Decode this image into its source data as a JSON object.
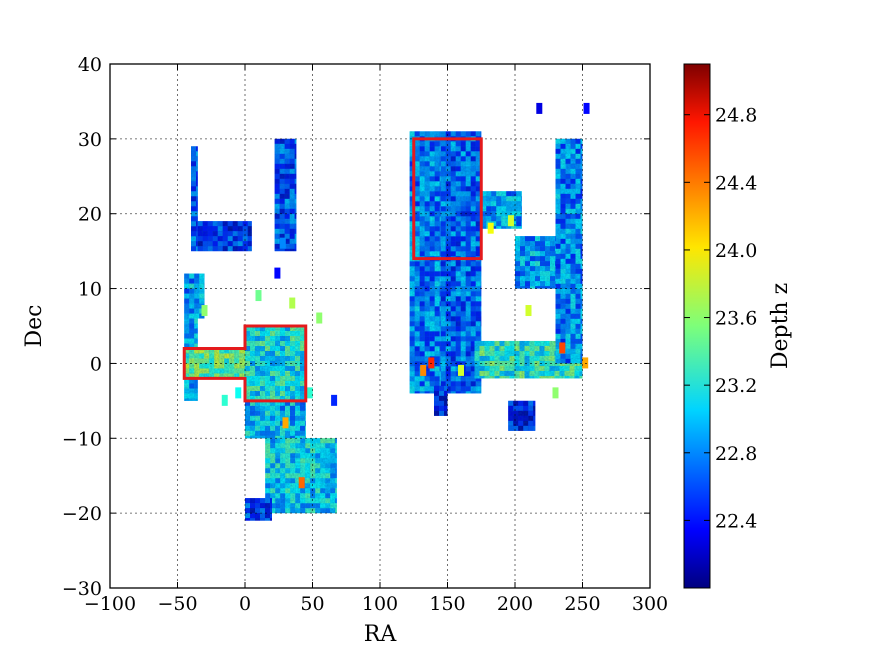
{
  "chart_data": {
    "type": "heatmap",
    "xlabel": "RA",
    "ylabel": "Dec",
    "xlim": [
      -100,
      300
    ],
    "ylim": [
      -30,
      40
    ],
    "xticks": [
      "−100",
      "−50",
      "0",
      "50",
      "100",
      "150",
      "200",
      "250",
      "300"
    ],
    "xtick_values": [
      -100,
      -50,
      0,
      50,
      100,
      150,
      200,
      250,
      300
    ],
    "yticks": [
      "−30",
      "−20",
      "−10",
      "0",
      "10",
      "20",
      "30",
      "40"
    ],
    "ytick_values": [
      -30,
      -20,
      -10,
      0,
      10,
      20,
      30,
      40
    ],
    "grid": true,
    "colorbar": {
      "label": "Depth z",
      "range": [
        22.0,
        25.1
      ],
      "ticks": [
        "22.4",
        "22.8",
        "23.2",
        "23.6",
        "24.0",
        "24.4",
        "24.8"
      ],
      "tick_values": [
        22.4,
        22.8,
        23.2,
        23.6,
        24.0,
        24.4,
        24.8
      ],
      "colormap": "jet"
    },
    "highlight_boxes": [
      {
        "color": "#e41a1c",
        "polygon_ra_dec": [
          [
            -45,
            -2
          ],
          [
            0,
            -2
          ],
          [
            0,
            -5
          ],
          [
            45,
            -5
          ],
          [
            45,
            5
          ],
          [
            0,
            5
          ],
          [
            0,
            2
          ],
          [
            -45,
            2
          ]
        ]
      },
      {
        "color": "#e41a1c",
        "polygon_ra_dec": [
          [
            125,
            14
          ],
          [
            175,
            14
          ],
          [
            175,
            30
          ],
          [
            125,
            30
          ]
        ]
      }
    ],
    "coverage_regions": [
      {
        "ra": [
          -40,
          -35
        ],
        "dec": [
          15,
          29
        ],
        "depth": 22.6
      },
      {
        "ra": [
          -35,
          5
        ],
        "dec": [
          15,
          19
        ],
        "depth": 22.5
      },
      {
        "ra": [
          -45,
          -30
        ],
        "dec": [
          6,
          12
        ],
        "depth": 22.9
      },
      {
        "ra": [
          -45,
          -35
        ],
        "dec": [
          -5,
          6
        ],
        "depth": 23.0
      },
      {
        "ra": [
          -45,
          0
        ],
        "dec": [
          -2,
          2
        ],
        "depth": 23.5
      },
      {
        "ra": [
          0,
          45
        ],
        "dec": [
          -5,
          5
        ],
        "depth": 23.2
      },
      {
        "ra": [
          0,
          45
        ],
        "dec": [
          -10,
          -5
        ],
        "depth": 23.0
      },
      {
        "ra": [
          15,
          68
        ],
        "dec": [
          -20,
          -10
        ],
        "depth": 23.1
      },
      {
        "ra": [
          0,
          20
        ],
        "dec": [
          -21,
          -18
        ],
        "depth": 22.5
      },
      {
        "ra": [
          22,
          38
        ],
        "dec": [
          15,
          30
        ],
        "depth": 22.6
      },
      {
        "ra": [
          122,
          145
        ],
        "dec": [
          -4,
          31
        ],
        "depth": 22.8
      },
      {
        "ra": [
          145,
          175
        ],
        "dec": [
          -4,
          31
        ],
        "depth": 22.7
      },
      {
        "ra": [
          175,
          205
        ],
        "dec": [
          18,
          23
        ],
        "depth": 22.9
      },
      {
        "ra": [
          200,
          245
        ],
        "dec": [
          10,
          17
        ],
        "depth": 22.9
      },
      {
        "ra": [
          170,
          250
        ],
        "dec": [
          -2,
          3
        ],
        "depth": 23.3
      },
      {
        "ra": [
          230,
          250
        ],
        "dec": [
          0,
          30
        ],
        "depth": 22.8
      },
      {
        "ra": [
          140,
          150
        ],
        "dec": [
          -7,
          -3
        ],
        "depth": 22.4
      },
      {
        "ra": [
          195,
          215
        ],
        "dec": [
          -9,
          -5
        ],
        "depth": 22.4
      }
    ]
  }
}
